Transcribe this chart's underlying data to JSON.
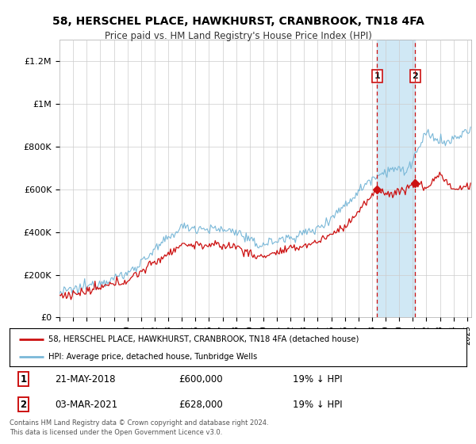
{
  "title": "58, HERSCHEL PLACE, HAWKHURST, CRANBROOK, TN18 4FA",
  "subtitle": "Price paid vs. HM Land Registry's House Price Index (HPI)",
  "ylabel_ticks": [
    "£0",
    "£200K",
    "£400K",
    "£600K",
    "£800K",
    "£1M",
    "£1.2M"
  ],
  "ytick_values": [
    0,
    200000,
    400000,
    600000,
    800000,
    1000000,
    1200000
  ],
  "ylim": [
    0,
    1300000
  ],
  "xlim_start": 1995.0,
  "xlim_end": 2025.3,
  "hpi_color": "#7ab8d8",
  "price_color": "#cc1111",
  "vline_color": "#cc1111",
  "shade_color": "#d0e8f5",
  "marker1_year": 2018.38,
  "marker2_year": 2021.17,
  "marker1_price": 600000,
  "marker2_price": 628000,
  "legend_label1": "58, HERSCHEL PLACE, HAWKHURST, CRANBROOK, TN18 4FA (detached house)",
  "legend_label2": "HPI: Average price, detached house, Tunbridge Wells",
  "annotation1_num": "1",
  "annotation1_date": "21-MAY-2018",
  "annotation1_price": "£600,000",
  "annotation1_hpi": "19% ↓ HPI",
  "annotation2_num": "2",
  "annotation2_date": "03-MAR-2021",
  "annotation2_price": "£628,000",
  "annotation2_hpi": "19% ↓ HPI",
  "footer": "Contains HM Land Registry data © Crown copyright and database right 2024.\nThis data is licensed under the Open Government Licence v3.0.",
  "background_color": "#ffffff",
  "grid_color": "#cccccc"
}
